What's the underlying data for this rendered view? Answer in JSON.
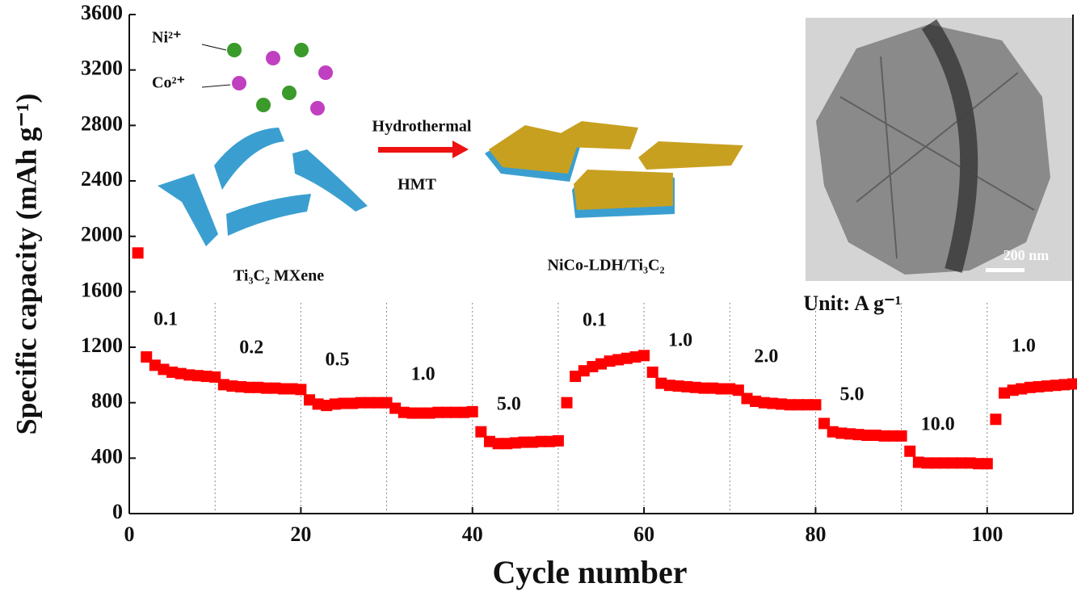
{
  "chart_data": {
    "type": "scatter",
    "ylabel": "Specific capacity (mAh g⁻¹)",
    "xlabel": "Cycle number",
    "color": "#ff0000",
    "xlim": [
      0,
      110
    ],
    "ylim": [
      0,
      3600
    ],
    "xticks": [
      0,
      20,
      40,
      60,
      80,
      100
    ],
    "yticks": [
      0,
      400,
      800,
      1200,
      1600,
      2000,
      2400,
      2800,
      3200,
      3600
    ],
    "dividers": [
      10,
      20,
      30,
      40,
      50,
      60,
      70,
      80,
      90,
      100
    ],
    "x": [
      1,
      2,
      3,
      4,
      5,
      6,
      7,
      8,
      9,
      10,
      11,
      12,
      13,
      14,
      15,
      16,
      17,
      18,
      19,
      20,
      21,
      22,
      23,
      24,
      25,
      26,
      27,
      28,
      29,
      30,
      31,
      32,
      33,
      34,
      35,
      36,
      37,
      38,
      39,
      40,
      41,
      42,
      43,
      44,
      45,
      46,
      47,
      48,
      49,
      50,
      51,
      52,
      53,
      54,
      55,
      56,
      57,
      58,
      59,
      60,
      61,
      62,
      63,
      64,
      65,
      66,
      67,
      68,
      69,
      70,
      71,
      72,
      73,
      74,
      75,
      76,
      77,
      78,
      79,
      80,
      81,
      82,
      83,
      84,
      85,
      86,
      87,
      88,
      89,
      90,
      91,
      92,
      93,
      94,
      95,
      96,
      97,
      98,
      99,
      100,
      101,
      102,
      103,
      104,
      105,
      106,
      107,
      108,
      109,
      110
    ],
    "values": [
      1880,
      1130,
      1070,
      1040,
      1020,
      1010,
      1000,
      995,
      990,
      985,
      930,
      920,
      915,
      910,
      910,
      905,
      905,
      900,
      900,
      895,
      820,
      790,
      780,
      790,
      795,
      795,
      800,
      800,
      800,
      800,
      760,
      730,
      725,
      725,
      725,
      730,
      730,
      730,
      730,
      735,
      590,
      520,
      505,
      505,
      510,
      515,
      515,
      520,
      520,
      525,
      800,
      990,
      1030,
      1060,
      1080,
      1100,
      1110,
      1120,
      1130,
      1140,
      1020,
      940,
      925,
      920,
      915,
      910,
      905,
      905,
      900,
      900,
      890,
      830,
      810,
      800,
      795,
      790,
      785,
      785,
      785,
      785,
      650,
      590,
      580,
      575,
      570,
      565,
      565,
      560,
      560,
      560,
      450,
      370,
      365,
      365,
      365,
      365,
      365,
      365,
      360,
      360,
      680,
      870,
      890,
      900,
      910,
      915,
      920,
      925,
      930,
      935
    ],
    "rate_labels": [
      "0.1",
      "0.2",
      "0.5",
      "1.0",
      "5.0",
      "0.1",
      "1.0",
      "2.0",
      "5.0",
      "10.0",
      "1.0"
    ],
    "unit_label": "Unit: A g⁻¹",
    "schematic": {
      "ni": "Ni²⁺",
      "co": "Co²⁺",
      "process": "Hydrothermal",
      "reagent": "HMT",
      "precursor": "Ti₃C₂ MXene",
      "product": "NiCo-LDH/Ti₃C₂",
      "scale_bar": "200 nm"
    }
  }
}
